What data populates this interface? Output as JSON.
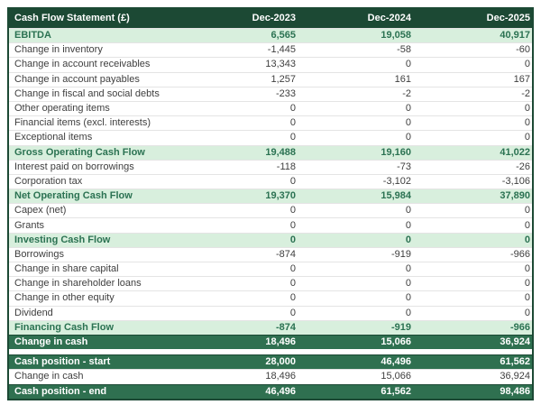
{
  "chart_data": {
    "type": "table",
    "title": "Cash Flow Statement (£)",
    "columns": [
      "Dec-2023",
      "Dec-2024",
      "Dec-2025"
    ],
    "rows": [
      {
        "label": "EBITDA",
        "values": [
          "6,565",
          "19,058",
          "40,917"
        ],
        "style": "subtotal"
      },
      {
        "label": "Change in inventory",
        "values": [
          "-1,445",
          "-58",
          "-60"
        ],
        "style": "normal"
      },
      {
        "label": "Change in account receivables",
        "values": [
          "13,343",
          "0",
          "0"
        ],
        "style": "normal"
      },
      {
        "label": "Change in account payables",
        "values": [
          "1,257",
          "161",
          "167"
        ],
        "style": "normal"
      },
      {
        "label": "Change in fiscal and social debts",
        "values": [
          "-233",
          "-2",
          "-2"
        ],
        "style": "normal"
      },
      {
        "label": "Other operating items",
        "values": [
          "0",
          "0",
          "0"
        ],
        "style": "normal"
      },
      {
        "label": "Financial items (excl. interests)",
        "values": [
          "0",
          "0",
          "0"
        ],
        "style": "normal"
      },
      {
        "label": "Exceptional items",
        "values": [
          "0",
          "0",
          "0"
        ],
        "style": "normal"
      },
      {
        "label": "Gross Operating Cash Flow",
        "values": [
          "19,488",
          "19,160",
          "41,022"
        ],
        "style": "subtotal"
      },
      {
        "label": "Interest paid on borrowings",
        "values": [
          "-118",
          "-73",
          "-26"
        ],
        "style": "normal"
      },
      {
        "label": "Corporation tax",
        "values": [
          "0",
          "-3,102",
          "-3,106"
        ],
        "style": "normal"
      },
      {
        "label": "Net Operating Cash Flow",
        "values": [
          "19,370",
          "15,984",
          "37,890"
        ],
        "style": "subtotal"
      },
      {
        "label": "Capex (net)",
        "values": [
          "0",
          "0",
          "0"
        ],
        "style": "normal"
      },
      {
        "label": "Grants",
        "values": [
          "0",
          "0",
          "0"
        ],
        "style": "normal"
      },
      {
        "label": "Investing Cash Flow",
        "values": [
          "0",
          "0",
          "0"
        ],
        "style": "subtotal"
      },
      {
        "label": "Borrowings",
        "values": [
          "-874",
          "-919",
          "-966"
        ],
        "style": "normal"
      },
      {
        "label": "Change in share capital",
        "values": [
          "0",
          "0",
          "0"
        ],
        "style": "normal"
      },
      {
        "label": "Change in shareholder loans",
        "values": [
          "0",
          "0",
          "0"
        ],
        "style": "normal"
      },
      {
        "label": "Change in other equity",
        "values": [
          "0",
          "0",
          "0"
        ],
        "style": "normal"
      },
      {
        "label": "Dividend",
        "values": [
          "0",
          "0",
          "0"
        ],
        "style": "normal"
      },
      {
        "label": "Financing Cash Flow",
        "values": [
          "-874",
          "-919",
          "-966"
        ],
        "style": "subtotal"
      },
      {
        "label": "Change in cash",
        "values": [
          "18,496",
          "15,066",
          "36,924"
        ],
        "style": "total"
      },
      {
        "label": "",
        "values": [
          "",
          "",
          ""
        ],
        "style": "spacer"
      },
      {
        "label": "Cash position - start",
        "values": [
          "28,000",
          "46,496",
          "61,562"
        ],
        "style": "total"
      },
      {
        "label": "Change in cash",
        "values": [
          "18,496",
          "15,066",
          "36,924"
        ],
        "style": "normal"
      },
      {
        "label": "Cash position - end",
        "values": [
          "46,496",
          "61,562",
          "98,486"
        ],
        "style": "total"
      }
    ],
    "colors": {
      "header_bg": "#1c4934",
      "header_text": "#ffffff",
      "subtotal_bg": "#d8efdd",
      "subtotal_text": "#2b7252",
      "total_bg": "#2f7050",
      "total_text": "#ffffff",
      "row_text": "#3e3e3e",
      "divider": "#e4e4e4",
      "border": "#1c4934",
      "page_bg": "#ffffff"
    }
  }
}
